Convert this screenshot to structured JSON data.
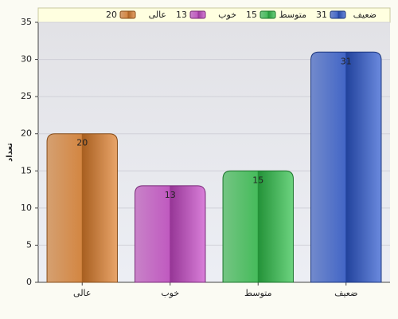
{
  "chart_data": {
    "type": "bar",
    "y_label": "تعداد",
    "categories": [
      "عالی",
      "خوب",
      "متوسط",
      "ضعیف"
    ],
    "values": [
      20,
      13,
      15,
      31
    ],
    "colors": [
      "#e07f2a",
      "#c848c8",
      "#2fc24a",
      "#2c58d0"
    ],
    "ylim": [
      0,
      35
    ],
    "yticks": [
      0,
      5,
      10,
      15,
      20,
      25,
      30,
      35
    ],
    "grid": true,
    "legend": "top"
  }
}
